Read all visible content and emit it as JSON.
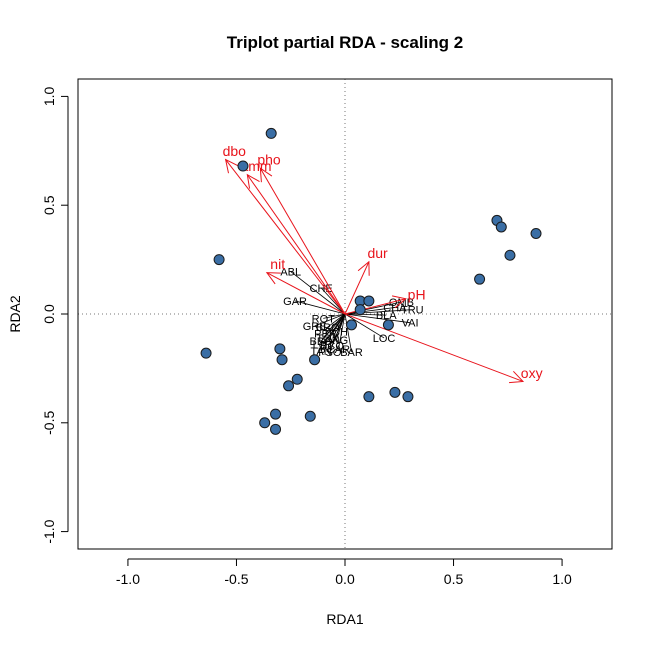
{
  "chart_data": {
    "type": "scatter",
    "title": "Triplot partial RDA - scaling 2",
    "xlabel": "RDA1",
    "ylabel": "RDA2",
    "xlim": [
      -1.23,
      1.23
    ],
    "ylim": [
      -1.08,
      1.08
    ],
    "x_ticks": [
      -1.0,
      -0.5,
      0.0,
      0.5,
      1.0
    ],
    "y_ticks": [
      -1.0,
      -0.5,
      0.0,
      0.5,
      1.0
    ],
    "x_tick_labels": [
      "-1.0",
      "-0.5",
      "0.0",
      "0.5",
      "1.0"
    ],
    "y_tick_labels": [
      "-1.0",
      "-0.5",
      "0.0",
      "0.5",
      "1.0"
    ],
    "reference_lines": {
      "x": 0,
      "y": 0,
      "style": "dotted"
    },
    "colors": {
      "sites_fill": "#3a6ea5",
      "sites_stroke": "#1a1a1a",
      "species_lines": "#000000",
      "env_arrows": "#e8141c"
    },
    "sites": [
      {
        "x": -0.34,
        "y": 0.83
      },
      {
        "x": -0.47,
        "y": 0.68
      },
      {
        "x": -0.58,
        "y": 0.25
      },
      {
        "x": -0.64,
        "y": -0.18
      },
      {
        "x": -0.3,
        "y": -0.16
      },
      {
        "x": -0.29,
        "y": -0.21
      },
      {
        "x": -0.22,
        "y": -0.3
      },
      {
        "x": -0.26,
        "y": -0.33
      },
      {
        "x": -0.37,
        "y": -0.5
      },
      {
        "x": -0.32,
        "y": -0.46
      },
      {
        "x": -0.32,
        "y": -0.53
      },
      {
        "x": -0.16,
        "y": -0.47
      },
      {
        "x": -0.14,
        "y": -0.21
      },
      {
        "x": 0.03,
        "y": -0.05
      },
      {
        "x": 0.07,
        "y": 0.06
      },
      {
        "x": 0.11,
        "y": 0.06
      },
      {
        "x": 0.07,
        "y": 0.02
      },
      {
        "x": 0.2,
        "y": -0.05
      },
      {
        "x": 0.11,
        "y": -0.38
      },
      {
        "x": 0.23,
        "y": -0.36
      },
      {
        "x": 0.29,
        "y": -0.38
      },
      {
        "x": 0.62,
        "y": 0.16
      },
      {
        "x": 0.7,
        "y": 0.43
      },
      {
        "x": 0.72,
        "y": 0.4
      },
      {
        "x": 0.76,
        "y": 0.27
      },
      {
        "x": 0.88,
        "y": 0.37
      }
    ],
    "species": [
      {
        "name": "ABL",
        "x": -0.25,
        "y": 0.195
      },
      {
        "name": "CHE",
        "x": -0.11,
        "y": 0.12
      },
      {
        "name": "GAR",
        "x": -0.23,
        "y": 0.06
      },
      {
        "name": "ROT",
        "x": -0.1,
        "y": -0.02
      },
      {
        "name": "GRE",
        "x": -0.14,
        "y": -0.055
      },
      {
        "name": "BRO",
        "x": -0.08,
        "y": -0.06
      },
      {
        "name": "PCH",
        "x": -0.04,
        "y": -0.08
      },
      {
        "name": "PER",
        "x": -0.09,
        "y": -0.09
      },
      {
        "name": "TOX",
        "x": -0.08,
        "y": -0.11
      },
      {
        "name": "BBO",
        "x": -0.11,
        "y": -0.125
      },
      {
        "name": "ANG",
        "x": -0.04,
        "y": -0.12
      },
      {
        "name": "LOT",
        "x": -0.1,
        "y": -0.14
      },
      {
        "name": "BCO",
        "x": -0.06,
        "y": -0.145
      },
      {
        "name": "CAR",
        "x": -0.03,
        "y": -0.16
      },
      {
        "name": "TAN",
        "x": -0.11,
        "y": -0.17
      },
      {
        "name": "PSO",
        "x": -0.07,
        "y": -0.175
      },
      {
        "name": "BAR",
        "x": 0.03,
        "y": -0.175
      },
      {
        "name": "OMB",
        "x": 0.26,
        "y": 0.055
      },
      {
        "name": "CHA",
        "x": 0.23,
        "y": 0.03
      },
      {
        "name": "TRU",
        "x": 0.31,
        "y": 0.02
      },
      {
        "name": "BLA",
        "x": 0.19,
        "y": -0.005
      },
      {
        "name": "VAI",
        "x": 0.3,
        "y": -0.04
      },
      {
        "name": "LOC",
        "x": 0.18,
        "y": -0.11
      }
    ],
    "env_variables": [
      {
        "name": "dbo",
        "x": -0.55,
        "y": 0.71,
        "lx": -0.51,
        "ly": 0.75
      },
      {
        "name": "pho",
        "x": -0.39,
        "y": 0.67,
        "lx": -0.35,
        "ly": 0.71
      },
      {
        "name": "amm",
        "x": -0.45,
        "y": 0.64,
        "lx": -0.41,
        "ly": 0.68
      },
      {
        "name": "nit",
        "x": -0.36,
        "y": 0.19,
        "lx": -0.31,
        "ly": 0.23
      },
      {
        "name": "dur",
        "x": 0.11,
        "y": 0.24,
        "lx": 0.15,
        "ly": 0.28
      },
      {
        "name": "pH",
        "x": 0.28,
        "y": 0.07,
        "lx": 0.33,
        "ly": 0.09
      },
      {
        "name": "oxy",
        "x": 0.82,
        "y": -0.31,
        "lx": 0.86,
        "ly": -0.27
      }
    ]
  }
}
